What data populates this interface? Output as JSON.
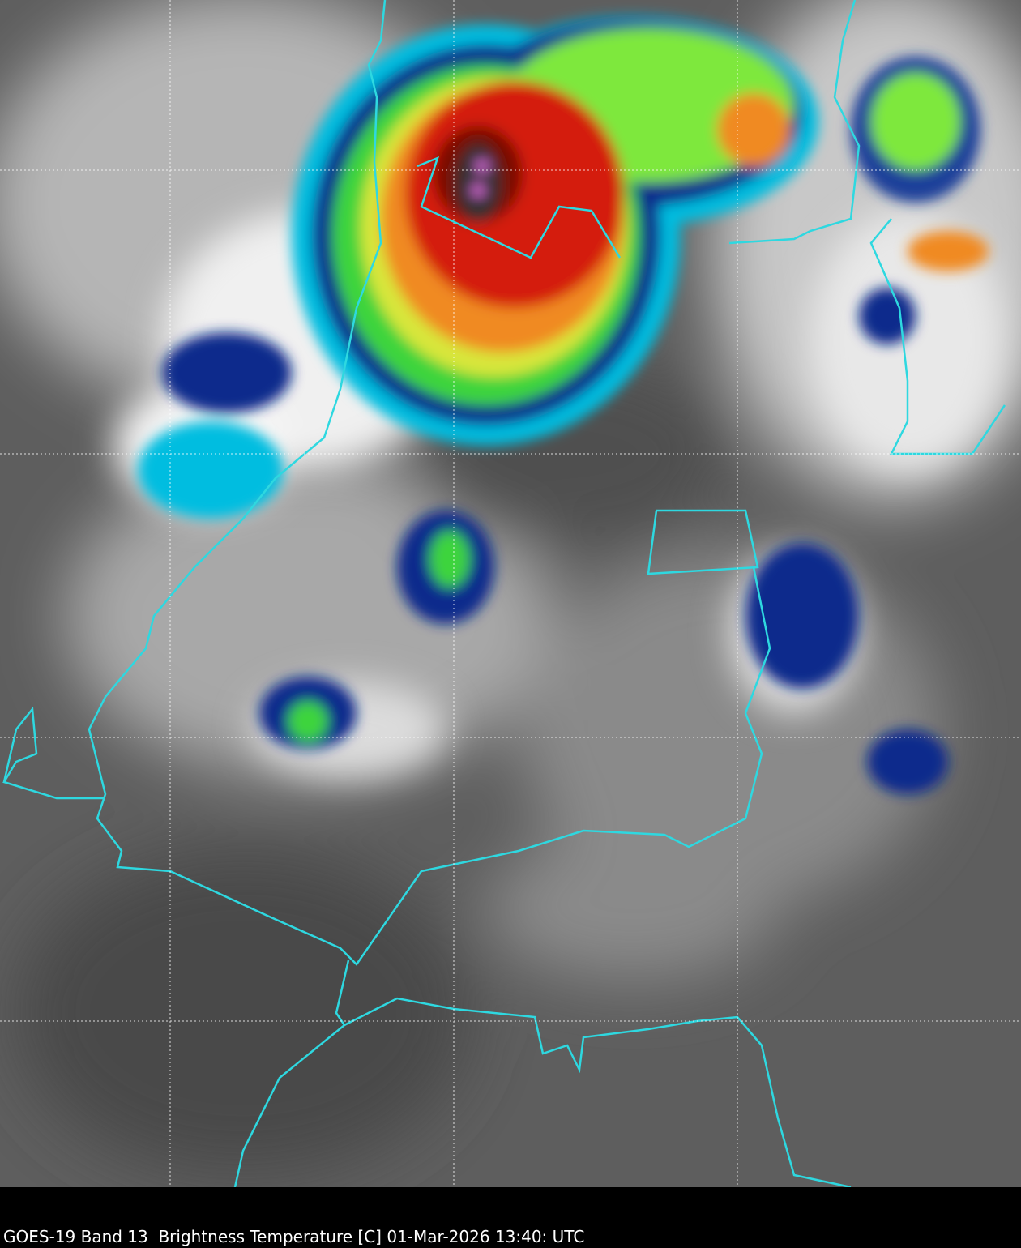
{
  "caption": "GOES-19 Band 13  Brightness Temperature [C] 01-Mar-2026 13:40: UTC"
}
